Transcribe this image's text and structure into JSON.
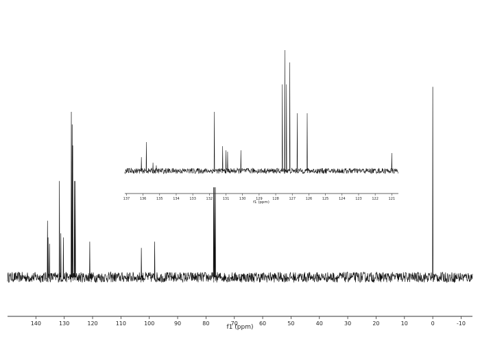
{
  "chart_data": [
    {
      "type": "line",
      "role": "main-spectrum",
      "xlabel": "f1 (ppm)",
      "x_reversed": true,
      "xlim": [
        -14,
        150
      ],
      "ylim": [
        0,
        1
      ],
      "xticks": [
        140,
        130,
        120,
        110,
        100,
        90,
        80,
        70,
        60,
        50,
        40,
        30,
        20,
        10,
        0,
        -10
      ],
      "baseline": 0.09,
      "noise_amplitude": 0.025,
      "peaks": [
        {
          "x": 135.9,
          "y": 0.36
        },
        {
          "x": 135.7,
          "y": 0.28
        },
        {
          "x": 135.2,
          "y": 0.25
        },
        {
          "x": 131.7,
          "y": 0.55
        },
        {
          "x": 131.2,
          "y": 0.3
        },
        {
          "x": 130.3,
          "y": 0.28
        },
        {
          "x": 127.5,
          "y": 0.88
        },
        {
          "x": 127.2,
          "y": 0.82
        },
        {
          "x": 127.0,
          "y": 0.72
        },
        {
          "x": 126.4,
          "y": 0.55
        },
        {
          "x": 126.1,
          "y": 0.55
        },
        {
          "x": 121.0,
          "y": 0.26
        },
        {
          "x": 102.8,
          "y": 0.23
        },
        {
          "x": 98.1,
          "y": 0.26
        },
        {
          "x": 77.3,
          "y": 0.52
        },
        {
          "x": 77.0,
          "y": 0.52
        },
        {
          "x": 76.7,
          "y": 0.52
        },
        {
          "x": 0.0,
          "y": 1.0
        }
      ]
    },
    {
      "type": "line",
      "role": "inset-spectrum",
      "xlabel": "f1 (ppm)",
      "x_reversed": true,
      "xlim": [
        120.6,
        137.1
      ],
      "ylim": [
        0,
        1
      ],
      "xticks": [
        137,
        136,
        135,
        134,
        133,
        132,
        131,
        130,
        129,
        128,
        127,
        126,
        125,
        124,
        123,
        122,
        121
      ],
      "baseline": 0.12,
      "noise_amplitude": 0.02,
      "peaks": [
        {
          "x": 136.1,
          "y": 0.22
        },
        {
          "x": 135.8,
          "y": 0.33
        },
        {
          "x": 135.4,
          "y": 0.18
        },
        {
          "x": 135.2,
          "y": 0.16
        },
        {
          "x": 131.7,
          "y": 0.55
        },
        {
          "x": 131.2,
          "y": 0.3
        },
        {
          "x": 131.0,
          "y": 0.27
        },
        {
          "x": 130.9,
          "y": 0.26
        },
        {
          "x": 130.1,
          "y": 0.27
        },
        {
          "x": 127.6,
          "y": 0.75
        },
        {
          "x": 127.45,
          "y": 1.0
        },
        {
          "x": 127.35,
          "y": 0.75
        },
        {
          "x": 127.15,
          "y": 0.91
        },
        {
          "x": 126.7,
          "y": 0.54
        },
        {
          "x": 126.1,
          "y": 0.54
        },
        {
          "x": 121.0,
          "y": 0.25
        }
      ]
    }
  ]
}
